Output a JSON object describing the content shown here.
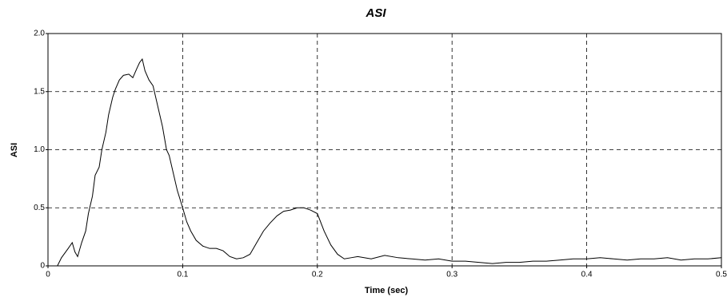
{
  "chart_data": {
    "type": "line",
    "title": "ASI",
    "xlabel": "Time (sec)",
    "ylabel": "ASI",
    "x": [
      0.007,
      0.01,
      0.015,
      0.018,
      0.02,
      0.022,
      0.025,
      0.028,
      0.03,
      0.033,
      0.035,
      0.038,
      0.04,
      0.043,
      0.045,
      0.048,
      0.05,
      0.053,
      0.056,
      0.06,
      0.063,
      0.066,
      0.068,
      0.07,
      0.072,
      0.075,
      0.078,
      0.08,
      0.083,
      0.085,
      0.088,
      0.09,
      0.093,
      0.096,
      0.1,
      0.103,
      0.106,
      0.11,
      0.115,
      0.12,
      0.125,
      0.13,
      0.135,
      0.14,
      0.145,
      0.15,
      0.155,
      0.16,
      0.165,
      0.17,
      0.175,
      0.18,
      0.185,
      0.19,
      0.195,
      0.2,
      0.205,
      0.21,
      0.215,
      0.22,
      0.225,
      0.23,
      0.24,
      0.25,
      0.26,
      0.27,
      0.28,
      0.29,
      0.3,
      0.31,
      0.32,
      0.33,
      0.34,
      0.35,
      0.36,
      0.37,
      0.38,
      0.39,
      0.4,
      0.41,
      0.42,
      0.43,
      0.44,
      0.45,
      0.46,
      0.47,
      0.48,
      0.49,
      0.5
    ],
    "values": [
      0,
      0.07,
      0.15,
      0.2,
      0.12,
      0.08,
      0.2,
      0.3,
      0.45,
      0.6,
      0.78,
      0.85,
      1.0,
      1.15,
      1.3,
      1.45,
      1.52,
      1.6,
      1.64,
      1.65,
      1.62,
      1.7,
      1.75,
      1.78,
      1.68,
      1.6,
      1.55,
      1.45,
      1.3,
      1.2,
      1.0,
      0.95,
      0.8,
      0.65,
      0.5,
      0.38,
      0.3,
      0.22,
      0.17,
      0.15,
      0.15,
      0.13,
      0.08,
      0.06,
      0.07,
      0.1,
      0.2,
      0.3,
      0.37,
      0.43,
      0.47,
      0.48,
      0.5,
      0.5,
      0.48,
      0.45,
      0.3,
      0.18,
      0.1,
      0.06,
      0.07,
      0.08,
      0.06,
      0.09,
      0.07,
      0.06,
      0.05,
      0.06,
      0.04,
      0.04,
      0.03,
      0.02,
      0.03,
      0.03,
      0.04,
      0.04,
      0.05,
      0.06,
      0.06,
      0.07,
      0.06,
      0.05,
      0.06,
      0.06,
      0.07,
      0.05,
      0.06,
      0.06,
      0.07
    ],
    "color": "#000000",
    "xlim": [
      0,
      0.5
    ],
    "xticks": [
      0,
      0.1,
      0.2,
      0.3,
      0.4,
      0.5
    ],
    "ylim": [
      0,
      2
    ],
    "yticks": [
      0,
      0.5,
      {
        "value": 1,
        "label": "1.0"
      },
      1.5,
      {
        "value": 2,
        "label": "2.0"
      }
    ],
    "grid": true
  }
}
